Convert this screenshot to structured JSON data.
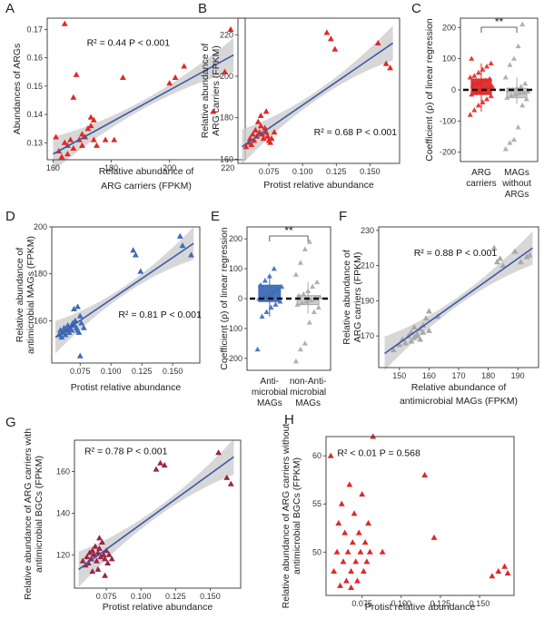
{
  "chart_data": [
    {
      "panel": "A",
      "type": "scatter",
      "xlabel": "Relative abundance of ARG carriers (FPKM)",
      "ylabel": "Abundances of ARGs",
      "xlim": [
        158,
        226
      ],
      "ylim": [
        0.124,
        0.174
      ],
      "xticks": [
        160,
        180,
        200,
        220
      ],
      "yticks": [
        0.13,
        0.14,
        0.15,
        0.16,
        0.17
      ],
      "annotation": {
        "r2": "R² = 0.44",
        "p": "P < 0.001"
      },
      "color": "#e02828",
      "points": [
        [
          161,
          0.132
        ],
        [
          162,
          0.127
        ],
        [
          163,
          0.125
        ],
        [
          164,
          0.13
        ],
        [
          164,
          0.172
        ],
        [
          165,
          0.129
        ],
        [
          165,
          0.126
        ],
        [
          166,
          0.131
        ],
        [
          167,
          0.128
        ],
        [
          167,
          0.146
        ],
        [
          168,
          0.154
        ],
        [
          169,
          0.131
        ],
        [
          170,
          0.133
        ],
        [
          170,
          0.129
        ],
        [
          171,
          0.132
        ],
        [
          172,
          0.135
        ],
        [
          173,
          0.136
        ],
        [
          173,
          0.139
        ],
        [
          174,
          0.131
        ],
        [
          174,
          0.138
        ],
        [
          175,
          0.129
        ],
        [
          178,
          0.131
        ],
        [
          181,
          0.131
        ],
        [
          184,
          0.153
        ],
        [
          200,
          0.151
        ],
        [
          202,
          0.153
        ],
        [
          205,
          0.157
        ],
        [
          215,
          0.141
        ],
        [
          219,
          0.155
        ],
        [
          221,
          0.17
        ]
      ],
      "fit": [
        [
          160,
          0.126
        ],
        [
          222,
          0.161
        ]
      ]
    },
    {
      "panel": "B",
      "type": "scatter",
      "xlabel": "Protist relative abundance",
      "ylabel": "Relative abundance of ARG carriers (FPKM)",
      "xlim": [
        0.052,
        0.172
      ],
      "ylim": [
        158,
        228
      ],
      "xticks": [
        0.075,
        0.1,
        0.125,
        0.15
      ],
      "xticklabels": [
        "0.075",
        "0.100",
        "0.125",
        "0.150"
      ],
      "yticks": [
        160,
        180,
        200,
        220
      ],
      "annotation": {
        "r2": "R² = 0.68",
        "p": "P < 0.001"
      },
      "color": "#e02828",
      "points": [
        [
          0.058,
          166
        ],
        [
          0.06,
          168
        ],
        [
          0.061,
          170
        ],
        [
          0.062,
          167
        ],
        [
          0.063,
          172
        ],
        [
          0.064,
          169
        ],
        [
          0.065,
          174
        ],
        [
          0.066,
          171
        ],
        [
          0.067,
          178
        ],
        [
          0.068,
          173
        ],
        [
          0.069,
          176
        ],
        [
          0.07,
          172
        ],
        [
          0.071,
          170
        ],
        [
          0.072,
          175
        ],
        [
          0.073,
          173
        ],
        [
          0.074,
          171
        ],
        [
          0.075,
          169
        ],
        [
          0.076,
          168
        ],
        [
          0.077,
          170
        ],
        [
          0.079,
          173
        ],
        [
          0.069,
          181
        ],
        [
          0.073,
          183
        ],
        [
          0.118,
          221
        ],
        [
          0.121,
          218
        ],
        [
          0.124,
          213
        ],
        [
          0.156,
          216
        ],
        [
          0.162,
          206
        ],
        [
          0.165,
          204
        ]
      ],
      "fit": [
        [
          0.055,
          166
        ],
        [
          0.167,
          216
        ]
      ]
    },
    {
      "panel": "C",
      "type": "box+strip",
      "ylabel": "Coefficient (ρ) of linear regression",
      "ylim": [
        -230,
        230
      ],
      "yticks": [
        -200,
        -100,
        0,
        100,
        200
      ],
      "categories": [
        "ARG carriers",
        "MAGs without ARGs"
      ],
      "colors": [
        "#e02828",
        "#a8a8a8"
      ],
      "significance": "**",
      "boxes": [
        {
          "q1": -15,
          "median": 0,
          "q3": 35,
          "lo": -70,
          "hi": 85
        },
        {
          "q1": -25,
          "median": -8,
          "q3": 5,
          "lo": -45,
          "hi": 40
        }
      ],
      "points": [
        [
          -80,
          -65,
          -50,
          -40,
          -30,
          -20,
          -15,
          -10,
          -5,
          0,
          5,
          10,
          15,
          20,
          25,
          30,
          35,
          40,
          45,
          55,
          65,
          75,
          85,
          100
        ],
        [
          -190,
          -170,
          -160,
          -120,
          -50,
          -30,
          -25,
          -20,
          -15,
          -10,
          -8,
          -5,
          0,
          0,
          5,
          10,
          20,
          40,
          80,
          100,
          140,
          210
        ]
      ]
    },
    {
      "panel": "D",
      "type": "scatter",
      "xlabel": "Protist relative abundance",
      "ylabel": "Relative abundance of antimicrobial MAGs (FPKM)",
      "xlim": [
        0.052,
        0.172
      ],
      "ylim": [
        142,
        200
      ],
      "xticks": [
        0.075,
        0.1,
        0.125,
        0.15
      ],
      "xticklabels": [
        "0.075",
        "0.100",
        "0.125",
        "0.150"
      ],
      "yticks": [
        160,
        180,
        200
      ],
      "annotation": {
        "r2": "R² = 0.81",
        "p": "P < 0.001"
      },
      "color": "#3e6bb5",
      "points": [
        [
          0.058,
          154
        ],
        [
          0.059,
          156
        ],
        [
          0.06,
          153
        ],
        [
          0.061,
          155
        ],
        [
          0.062,
          157
        ],
        [
          0.063,
          154
        ],
        [
          0.064,
          156
        ],
        [
          0.065,
          158
        ],
        [
          0.066,
          155
        ],
        [
          0.067,
          157
        ],
        [
          0.068,
          156
        ],
        [
          0.069,
          159
        ],
        [
          0.07,
          158
        ],
        [
          0.071,
          160
        ],
        [
          0.072,
          157
        ],
        [
          0.073,
          156
        ],
        [
          0.074,
          155
        ],
        [
          0.075,
          162
        ],
        [
          0.076,
          159
        ],
        [
          0.078,
          157
        ],
        [
          0.07,
          165
        ],
        [
          0.073,
          166
        ],
        [
          0.075,
          145
        ],
        [
          0.118,
          190
        ],
        [
          0.12,
          188
        ],
        [
          0.124,
          181
        ],
        [
          0.156,
          196
        ],
        [
          0.158,
          192
        ],
        [
          0.165,
          188
        ]
      ],
      "fit": [
        [
          0.055,
          153
        ],
        [
          0.167,
          193
        ]
      ]
    },
    {
      "panel": "E",
      "type": "box+strip",
      "ylabel": "Coefficient (ρ) of linear regression",
      "ylim": [
        -240,
        240
      ],
      "yticks": [
        -200,
        -100,
        0,
        100,
        200
      ],
      "categories": [
        "Anti-microbial MAGs",
        "non-Anti-microbial MAGs"
      ],
      "colors": [
        "#3e6bb5",
        "#a8a8a8"
      ],
      "significance": "**",
      "boxes": [
        {
          "q1": -10,
          "median": 0,
          "q3": 45,
          "lo": -60,
          "hi": 80
        },
        {
          "q1": -20,
          "median": -5,
          "q3": 10,
          "lo": -50,
          "hi": 55
        }
      ],
      "points": [
        [
          -170,
          -60,
          -45,
          -30,
          -20,
          -10,
          0,
          5,
          10,
          20,
          30,
          40,
          45,
          60,
          75,
          100
        ],
        [
          -210,
          -170,
          -150,
          -80,
          -45,
          -30,
          -20,
          -15,
          -10,
          -5,
          0,
          5,
          10,
          15,
          25,
          40,
          55,
          80,
          120,
          165,
          190
        ]
      ]
    },
    {
      "panel": "F",
      "type": "scatter",
      "xlabel": "Relative abundance of antimicrobial MAGs (FPKM)",
      "ylabel": "Relative abundance of ARG carriers (FPKM)",
      "xlim": [
        143,
        197
      ],
      "ylim": [
        152,
        232
      ],
      "xticks": [
        150,
        160,
        170,
        180,
        190
      ],
      "yticks": [
        170,
        190,
        210,
        230
      ],
      "annotation": {
        "r2": "R² = 0.88",
        "p": "P < 0.001"
      },
      "color": "#a8a8a8",
      "points": [
        [
          148,
          162
        ],
        [
          150,
          165
        ],
        [
          151,
          168
        ],
        [
          152,
          166
        ],
        [
          153,
          170
        ],
        [
          154,
          172
        ],
        [
          155,
          169
        ],
        [
          155,
          175
        ],
        [
          156,
          171
        ],
        [
          157,
          174
        ],
        [
          157,
          168
        ],
        [
          158,
          176
        ],
        [
          158,
          172
        ],
        [
          159,
          180
        ],
        [
          160,
          173
        ],
        [
          156,
          170
        ],
        [
          154,
          167
        ],
        [
          160,
          184
        ],
        [
          163,
          181
        ],
        [
          182,
          220
        ],
        [
          183,
          212
        ],
        [
          184,
          214
        ],
        [
          185,
          210
        ],
        [
          189,
          218
        ],
        [
          191,
          212
        ],
        [
          193,
          215
        ],
        [
          194,
          216
        ]
      ],
      "fit": [
        [
          145,
          160
        ],
        [
          195,
          220
        ]
      ]
    },
    {
      "panel": "G",
      "type": "scatter",
      "xlabel": "Protist relative abundance",
      "ylabel": "Relative abundance of ARG carriers with antimicrobial BGCs (FPKM)",
      "xlim": [
        0.052,
        0.172
      ],
      "ylim": [
        104,
        175
      ],
      "xticks": [
        0.075,
        0.1,
        0.125,
        0.15
      ],
      "xticklabels": [
        "0.075",
        "0.100",
        "0.125",
        "0.150"
      ],
      "yticks": [
        120,
        140,
        160
      ],
      "annotation": {
        "r2": "R² = 0.78",
        "p": "P < 0.001"
      },
      "color": "#9b2348",
      "points": [
        [
          0.058,
          117
        ],
        [
          0.06,
          115
        ],
        [
          0.061,
          119
        ],
        [
          0.062,
          116
        ],
        [
          0.063,
          121
        ],
        [
          0.064,
          118
        ],
        [
          0.065,
          122
        ],
        [
          0.066,
          120
        ],
        [
          0.067,
          124
        ],
        [
          0.068,
          117
        ],
        [
          0.069,
          121
        ],
        [
          0.07,
          123
        ],
        [
          0.071,
          119
        ],
        [
          0.072,
          126
        ],
        [
          0.073,
          120
        ],
        [
          0.074,
          118
        ],
        [
          0.075,
          122
        ],
        [
          0.076,
          116
        ],
        [
          0.077,
          120
        ],
        [
          0.079,
          118
        ],
        [
          0.065,
          112
        ],
        [
          0.069,
          113
        ],
        [
          0.07,
          128
        ],
        [
          0.074,
          110
        ],
        [
          0.111,
          161
        ],
        [
          0.114,
          164
        ],
        [
          0.117,
          163
        ],
        [
          0.156,
          169
        ],
        [
          0.162,
          157
        ],
        [
          0.165,
          154
        ]
      ],
      "fit": [
        [
          0.055,
          113
        ],
        [
          0.167,
          167
        ]
      ]
    },
    {
      "panel": "H",
      "type": "scatter",
      "xlabel": "Protist relative abundance",
      "ylabel": "Relative abundance of ARG carriers without antimicrobial BGCs (FPKM)",
      "xlim": [
        0.052,
        0.172
      ],
      "ylim": [
        45.5,
        62
      ],
      "xticks": [
        0.075,
        0.1,
        0.125,
        0.15
      ],
      "xticklabels": [
        "0.075",
        "0.100",
        "0.125",
        "0.150"
      ],
      "yticks": [
        50,
        55,
        60
      ],
      "annotation": {
        "r2": "R² < 0.01",
        "p": "P = 0.568"
      },
      "color": "#e02828",
      "points": [
        [
          0.055,
          60
        ],
        [
          0.057,
          48
        ],
        [
          0.059,
          50
        ],
        [
          0.06,
          53
        ],
        [
          0.062,
          55
        ],
        [
          0.063,
          49
        ],
        [
          0.064,
          52
        ],
        [
          0.065,
          47
        ],
        [
          0.066,
          50
        ],
        [
          0.067,
          57
        ],
        [
          0.068,
          48
        ],
        [
          0.069,
          51
        ],
        [
          0.07,
          54
        ],
        [
          0.071,
          49
        ],
        [
          0.072,
          47
        ],
        [
          0.073,
          52
        ],
        [
          0.074,
          50
        ],
        [
          0.075,
          56
        ],
        [
          0.076,
          48
        ],
        [
          0.077,
          51
        ],
        [
          0.078,
          49
        ],
        [
          0.079,
          53
        ],
        [
          0.08,
          50
        ],
        [
          0.061,
          46.5
        ],
        [
          0.068,
          46.3
        ],
        [
          0.082,
          62
        ],
        [
          0.088,
          50
        ],
        [
          0.115,
          58
        ],
        [
          0.121,
          51.5
        ],
        [
          0.158,
          47.5
        ],
        [
          0.162,
          48
        ],
        [
          0.166,
          48.5
        ],
        [
          0.168,
          47.8
        ]
      ],
      "fit": []
    }
  ]
}
